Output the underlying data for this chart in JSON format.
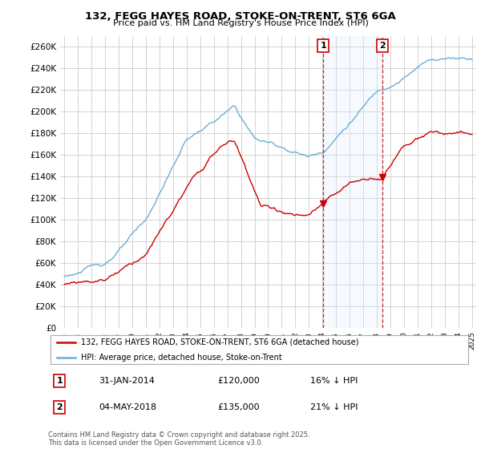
{
  "title_line1": "132, FEGG HAYES ROAD, STOKE-ON-TRENT, ST6 6GA",
  "title_line2": "Price paid vs. HM Land Registry's House Price Index (HPI)",
  "ylim": [
    0,
    270000
  ],
  "yticks": [
    0,
    20000,
    40000,
    60000,
    80000,
    100000,
    120000,
    140000,
    160000,
    180000,
    200000,
    220000,
    240000,
    260000
  ],
  "hpi_color": "#6aaed6",
  "price_color": "#cc0000",
  "sale1_label": "1",
  "sale2_label": "2",
  "sale1_date": "31-JAN-2014",
  "sale1_price": "£120,000",
  "sale1_hpi": "16% ↓ HPI",
  "sale2_date": "04-MAY-2018",
  "sale2_price": "£135,000",
  "sale2_hpi": "21% ↓ HPI",
  "legend_line1": "132, FEGG HAYES ROAD, STOKE-ON-TRENT, ST6 6GA (detached house)",
  "legend_line2": "HPI: Average price, detached house, Stoke-on-Trent",
  "footnote": "Contains HM Land Registry data © Crown copyright and database right 2025.\nThis data is licensed under the Open Government Licence v3.0.",
  "background_color": "#ffffff",
  "grid_color": "#cccccc",
  "shade_color": "#ddeeff",
  "sale1_year": 2014.08,
  "sale2_year": 2018.37,
  "start_year": 1995,
  "end_year": 2025
}
